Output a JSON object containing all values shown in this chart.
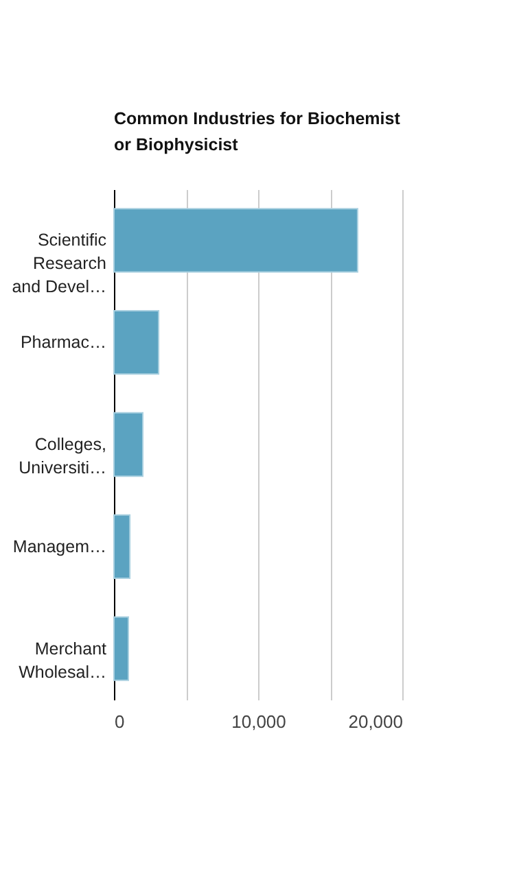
{
  "chart_data": {
    "type": "bar",
    "orientation": "horizontal",
    "title": "Common Industries for Biochemist\nor Biophysicist",
    "categories": [
      "Scientific\nResearch\nand Devel…",
      "Pharmac…",
      "Colleges,\nUniversiti…",
      "Managem…",
      "Merchant\nWholesal…"
    ],
    "values": [
      16900,
      3100,
      2000,
      1100,
      1000
    ],
    "color": "#5ba3c1",
    "xlim": [
      0,
      20000
    ],
    "xticks": [
      0,
      {
        "value": 5000,
        "label": null
      },
      {
        "value": 10000,
        "label": "10,000"
      },
      {
        "value": 15000,
        "label": null
      },
      {
        "value": 20000,
        "label": "20,000"
      }
    ],
    "grid": "x"
  }
}
